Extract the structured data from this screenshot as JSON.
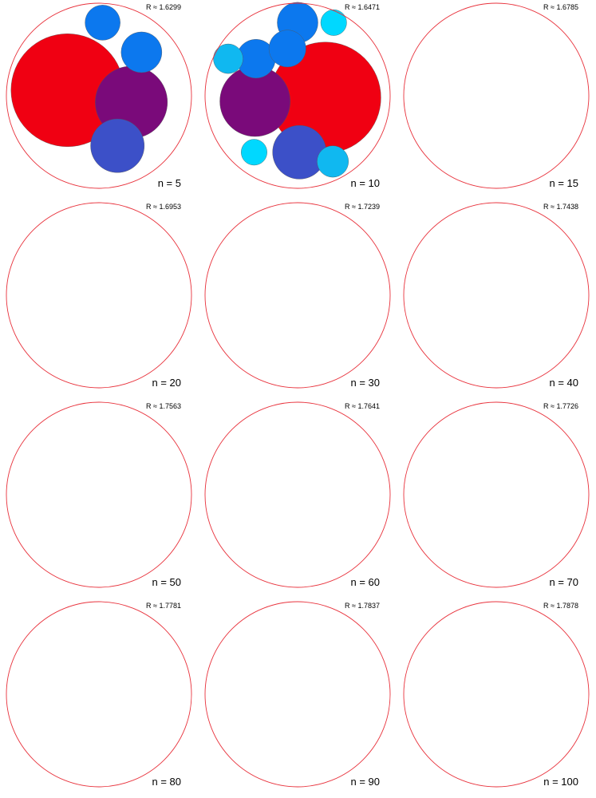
{
  "colors": {
    "boundary": "#e8323c",
    "stroke": "#555555",
    "palette": [
      "#ffff00",
      "#ff9500",
      "#00d8ff",
      "#10b8f0",
      "#0c78ee",
      "#2840cc",
      "#3c50c8",
      "#5a28b0",
      "#6a1a9a",
      "#7a0a7a",
      "#8a006a",
      "#a0005a",
      "#c00038",
      "#d8002a",
      "#f00012"
    ]
  },
  "panels": [
    {
      "r_label": "R ≈ 1.6299",
      "n_label": "n = 5",
      "n": 5
    },
    {
      "r_label": "R ≈ 1.6471",
      "n_label": "n = 10",
      "n": 10
    },
    {
      "r_label": "R ≈ 1.6785",
      "n_label": "n = 15",
      "n": 15
    },
    {
      "r_label": "R ≈ 1.6953",
      "n_label": "n = 20",
      "n": 20
    },
    {
      "r_label": "R ≈ 1.7239",
      "n_label": "n = 30",
      "n": 30
    },
    {
      "r_label": "R ≈ 1.7438",
      "n_label": "n = 40",
      "n": 40
    },
    {
      "r_label": "R ≈ 1.7563",
      "n_label": "n = 50",
      "n": 50
    },
    {
      "r_label": "R ≈ 1.7641",
      "n_label": "n = 60",
      "n": 60
    },
    {
      "r_label": "R ≈ 1.7726",
      "n_label": "n = 70",
      "n": 70
    },
    {
      "r_label": "R ≈ 1.7781",
      "n_label": "n = 80",
      "n": 80
    },
    {
      "r_label": "R ≈ 1.7837",
      "n_label": "n = 90",
      "n": 90
    },
    {
      "r_label": "R ≈ 1.7878",
      "n_label": "n = 100",
      "n": 100
    }
  ]
}
